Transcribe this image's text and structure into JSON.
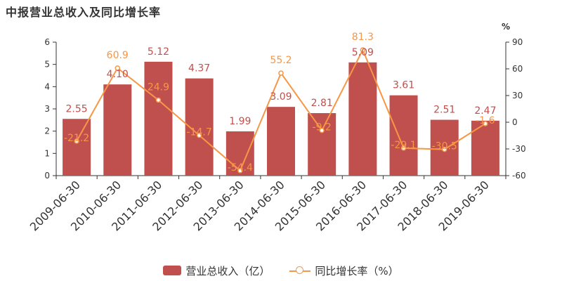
{
  "title": "中报营业总收入及同比增长率",
  "colors": {
    "bar": "#C0504D",
    "line": "#F79646",
    "axis": "#333333"
  },
  "chart_data": {
    "type": "bar",
    "categories": [
      "2009-06-30",
      "2010-06-30",
      "2011-06-30",
      "2012-06-30",
      "2013-06-30",
      "2014-06-30",
      "2015-06-30",
      "2016-06-30",
      "2017-06-30",
      "2018-06-30",
      "2019-06-30"
    ],
    "series": [
      {
        "name": "营业总收入（亿）",
        "type": "bar",
        "axis": "left",
        "values": [
          2.55,
          4.1,
          5.12,
          4.37,
          1.99,
          3.09,
          2.81,
          5.09,
          3.61,
          2.51,
          2.47
        ],
        "labels": [
          "2.55",
          "4.10",
          "5.12",
          "4.37",
          "1.99",
          "3.09",
          "2.81",
          "5.09",
          "3.61",
          "2.51",
          "2.47"
        ]
      },
      {
        "name": "同比增长率（%）",
        "type": "line",
        "axis": "right",
        "values": [
          -21.2,
          60.9,
          24.9,
          -14.7,
          -54.4,
          55.2,
          -9.2,
          81.3,
          -29.1,
          -30.5,
          -1.6
        ],
        "labels": [
          "-21.2",
          "60.9",
          "24.9",
          "-14.7",
          "-54.4",
          "55.2",
          "-9.2",
          "81.3",
          "-29.1",
          "-30.5",
          "-1.6"
        ]
      }
    ],
    "y_left": {
      "lim": [
        0,
        6
      ],
      "ticks": [
        "0",
        "1",
        "2",
        "3",
        "4",
        "5",
        "6"
      ]
    },
    "y_right": {
      "lim": [
        -60,
        90
      ],
      "ticks": [
        "-60",
        "-30",
        "0",
        "30",
        "60",
        "90"
      ],
      "unit": "%"
    },
    "grid": false,
    "legend": "bottom-center"
  }
}
